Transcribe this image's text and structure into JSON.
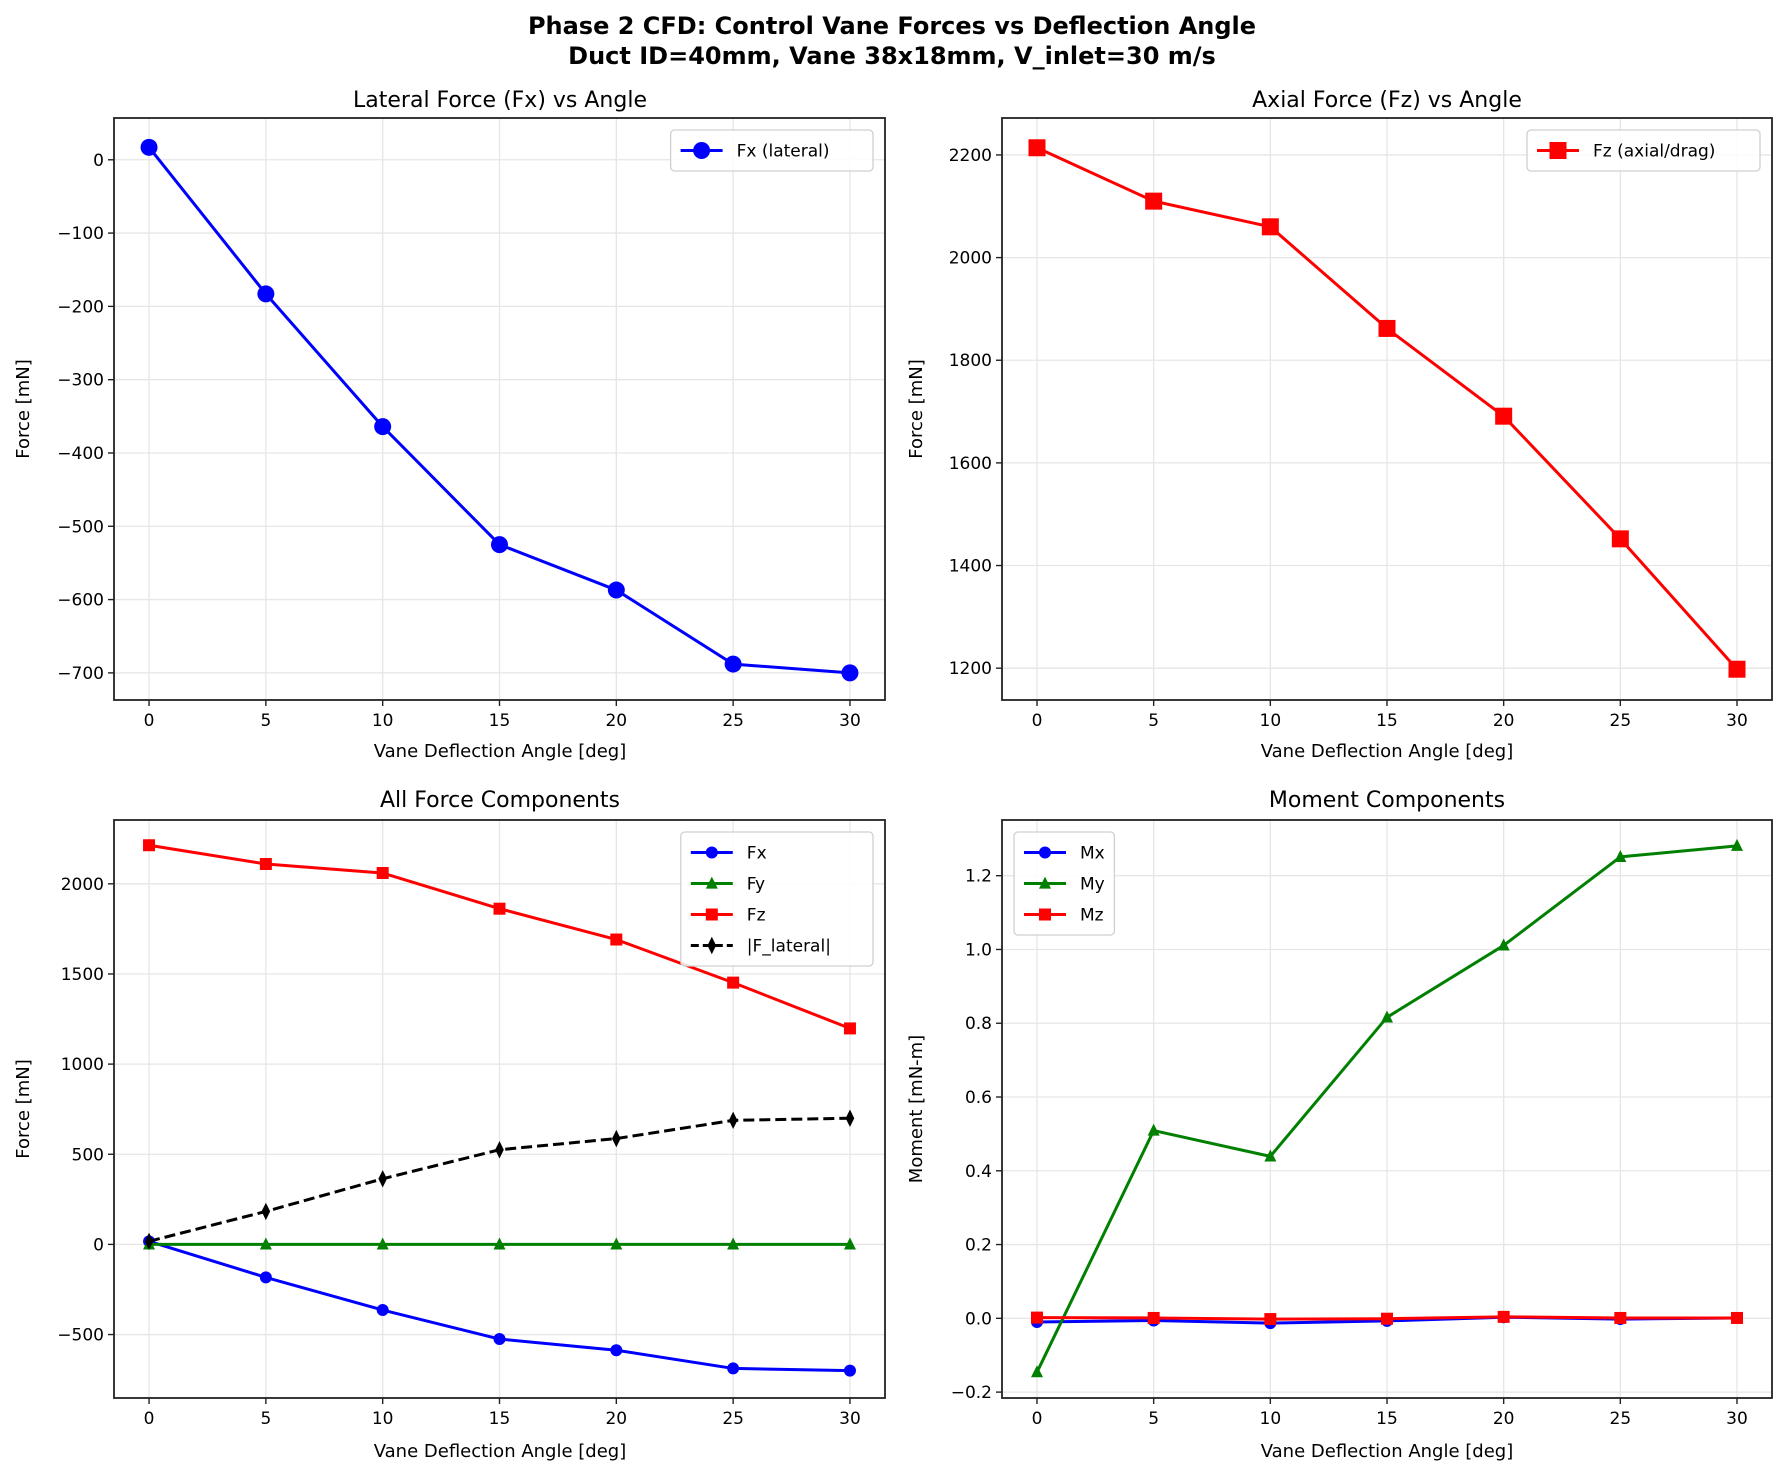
{
  "figure": {
    "title_line1": "Phase 2 CFD: Control Vane Forces vs Deflection Angle",
    "title_line2": "Duct ID=40mm, Vane 38x18mm, V_inlet=30 m/s"
  },
  "colors": {
    "blue": "#0000ff",
    "green": "#008000",
    "red": "#ff0000",
    "black": "#000000",
    "grid": "#e6e6e6"
  },
  "chart_data": [
    {
      "type": "line",
      "title": "Lateral Force (Fx) vs Angle",
      "xlabel": "Vane Deflection Angle [deg]",
      "ylabel": "Force [mN]",
      "x": [
        0,
        5,
        10,
        15,
        20,
        25,
        30
      ],
      "xlim": [
        -1.5,
        31.5
      ],
      "ylim": [
        -737,
        57
      ],
      "xticks": [
        0,
        5,
        10,
        15,
        20,
        25,
        30
      ],
      "yticks": [
        0,
        -100,
        -200,
        -300,
        -400,
        -500,
        -600,
        -700
      ],
      "ytick_labels": [
        "0",
        "−100",
        "−200",
        "−300",
        "−400",
        "−500",
        "−600",
        "−700"
      ],
      "grid": true,
      "legend": "top-right",
      "series": [
        {
          "name": "Fx (lateral)",
          "color": "#0000ff",
          "marker": "circle",
          "dash": false,
          "large": true,
          "values": [
            17,
            -183,
            -364,
            -525,
            -587,
            -688,
            -700
          ]
        }
      ]
    },
    {
      "type": "line",
      "title": "Axial Force (Fz) vs Angle",
      "xlabel": "Vane Deflection Angle [deg]",
      "ylabel": "Force [mN]",
      "x": [
        0,
        5,
        10,
        15,
        20,
        25,
        30
      ],
      "xlim": [
        -1.5,
        31.5
      ],
      "ylim": [
        1138,
        2272
      ],
      "xticks": [
        0,
        5,
        10,
        15,
        20,
        25,
        30
      ],
      "yticks": [
        1200,
        1400,
        1600,
        1800,
        2000,
        2200
      ],
      "ytick_labels": [
        "1200",
        "1400",
        "1600",
        "1800",
        "2000",
        "2200"
      ],
      "grid": true,
      "legend": "top-right",
      "series": [
        {
          "name": "Fz (axial/drag)",
          "color": "#ff0000",
          "marker": "square",
          "dash": false,
          "large": true,
          "values": [
            2214,
            2110,
            2060,
            1862,
            1691,
            1452,
            1198
          ]
        }
      ]
    },
    {
      "type": "line",
      "title": "All Force Components",
      "xlabel": "Vane Deflection Angle [deg]",
      "ylabel": "Force [mN]",
      "x": [
        0,
        5,
        10,
        15,
        20,
        25,
        30
      ],
      "xlim": [
        -1.5,
        31.5
      ],
      "ylim": [
        -852,
        2354
      ],
      "xticks": [
        0,
        5,
        10,
        15,
        20,
        25,
        30
      ],
      "yticks": [
        -500,
        0,
        500,
        1000,
        1500,
        2000
      ],
      "ytick_labels": [
        "−500",
        "0",
        "500",
        "1000",
        "1500",
        "2000"
      ],
      "grid": true,
      "legend": "top-right",
      "series": [
        {
          "name": "Fx",
          "color": "#0000ff",
          "marker": "circle",
          "dash": false,
          "large": false,
          "values": [
            17,
            -183,
            -364,
            -525,
            -587,
            -688,
            -700
          ]
        },
        {
          "name": "Fy",
          "color": "#008000",
          "marker": "triangle",
          "dash": false,
          "large": false,
          "values": [
            0,
            0,
            0,
            0,
            0,
            0,
            0
          ]
        },
        {
          "name": "Fz",
          "color": "#ff0000",
          "marker": "square",
          "dash": false,
          "large": false,
          "values": [
            2214,
            2110,
            2060,
            1862,
            1691,
            1452,
            1198
          ]
        },
        {
          "name": "|F_lateral|",
          "color": "#000000",
          "marker": "diamond",
          "dash": true,
          "large": false,
          "values": [
            17,
            183,
            364,
            525,
            587,
            688,
            700
          ]
        }
      ]
    },
    {
      "type": "line",
      "title": "Moment Components",
      "xlabel": "Vane Deflection Angle [deg]",
      "ylabel": "Moment [mN-m]",
      "x": [
        0,
        5,
        10,
        15,
        20,
        25,
        30
      ],
      "xlim": [
        -1.5,
        31.5
      ],
      "ylim": [
        -0.216,
        1.351
      ],
      "xticks": [
        0,
        5,
        10,
        15,
        20,
        25,
        30
      ],
      "yticks": [
        -0.2,
        0.0,
        0.2,
        0.4,
        0.6,
        0.8,
        1.0,
        1.2
      ],
      "ytick_labels": [
        "−0.2",
        "0.0",
        "0.2",
        "0.4",
        "0.6",
        "0.8",
        "1.0",
        "1.2"
      ],
      "grid": true,
      "legend": "top-left",
      "series": [
        {
          "name": "Mx",
          "color": "#0000ff",
          "marker": "circle",
          "dash": false,
          "large": false,
          "values": [
            -0.01,
            -0.006,
            -0.013,
            -0.007,
            0.003,
            -0.002,
            0.001
          ]
        },
        {
          "name": "My",
          "color": "#008000",
          "marker": "triangle",
          "dash": false,
          "large": false,
          "values": [
            -0.146,
            0.509,
            0.439,
            0.816,
            1.011,
            1.251,
            1.281
          ]
        },
        {
          "name": "Mz",
          "color": "#ff0000",
          "marker": "square",
          "dash": false,
          "large": false,
          "values": [
            0.002,
            0.001,
            -0.002,
            -0.001,
            0.004,
            0.001,
            0.001
          ]
        }
      ]
    }
  ]
}
